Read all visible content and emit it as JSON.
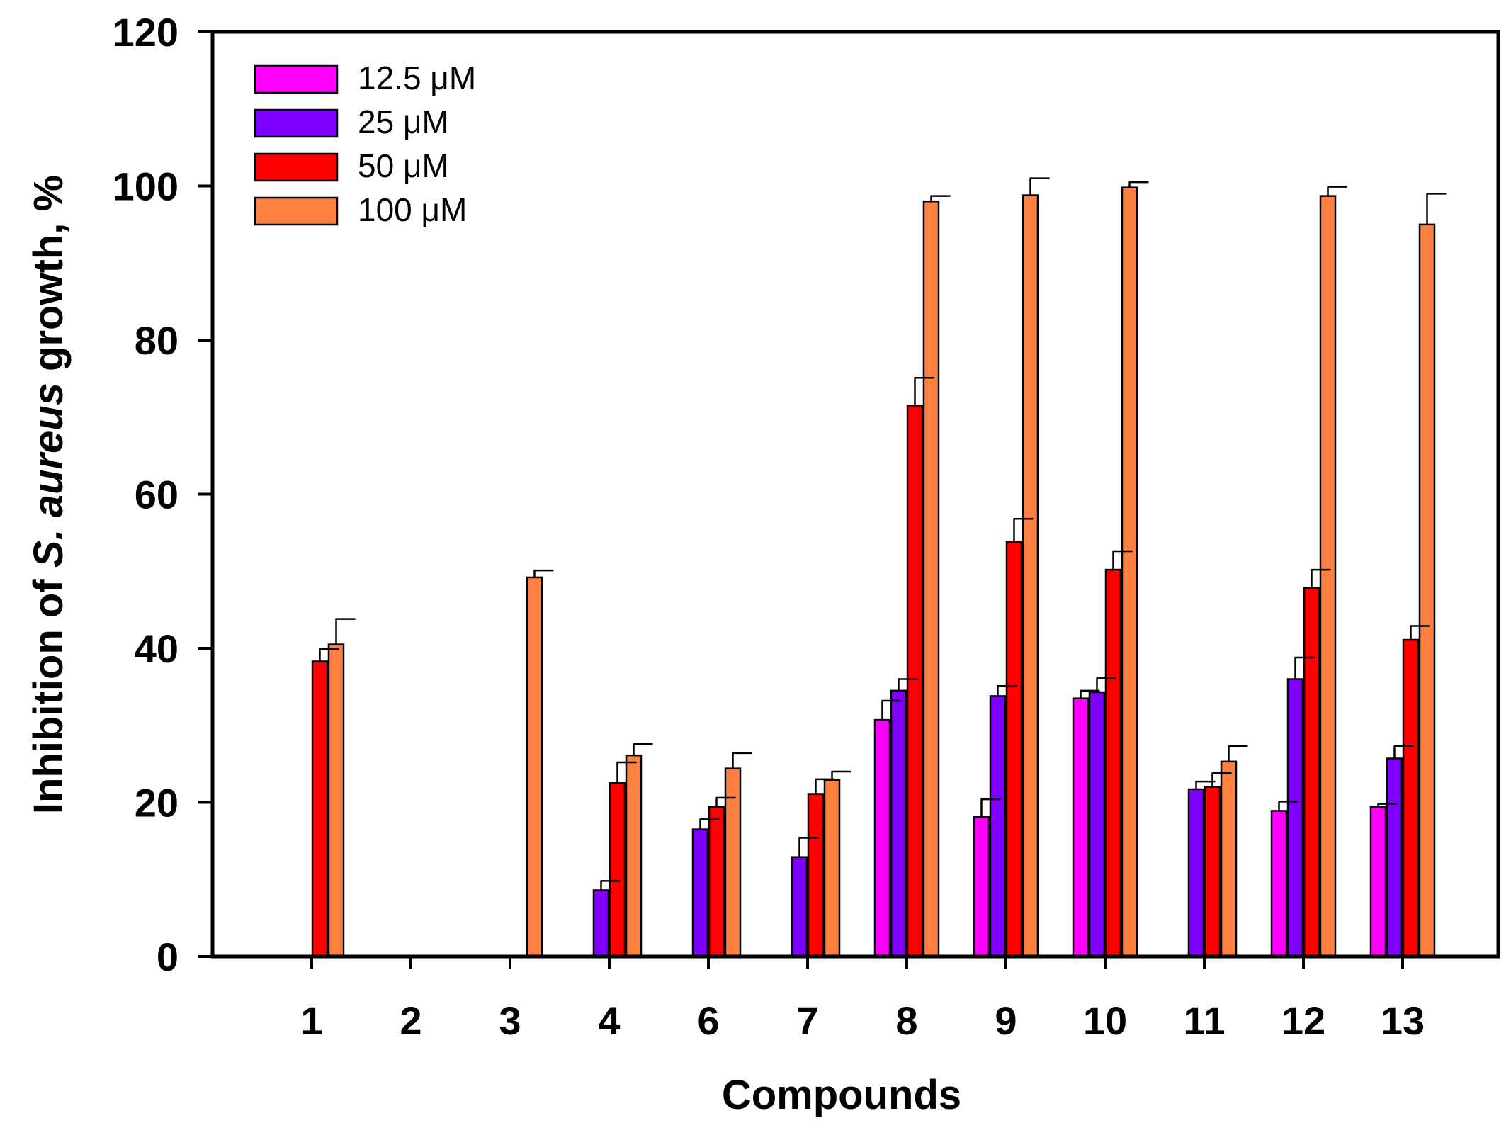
{
  "chart_data": {
    "type": "bar",
    "title": "",
    "xlabel": "Compounds",
    "ylabel": {
      "prefix": "Inhibition of ",
      "italic": "S. aureus",
      "suffix": " growth, %"
    },
    "ylim": [
      0,
      120
    ],
    "yticks": [
      0,
      20,
      40,
      60,
      80,
      100,
      120
    ],
    "categories": [
      "1",
      "2",
      "3",
      "4",
      "6",
      "7",
      "8",
      "9",
      "10",
      "11",
      "12",
      "13"
    ],
    "legend_position": "top-left",
    "series": [
      {
        "name": "12.5 μM",
        "color": "#ff00ff",
        "values": [
          null,
          null,
          null,
          null,
          null,
          null,
          30.7,
          18.1,
          33.5,
          null,
          18.9,
          19.4
        ],
        "errors": [
          null,
          null,
          null,
          null,
          null,
          null,
          2.5,
          2.3,
          1.0,
          null,
          1.2,
          0.4
        ]
      },
      {
        "name": "25 μM",
        "color": "#8000ff",
        "values": [
          null,
          null,
          null,
          8.6,
          16.5,
          12.9,
          34.5,
          33.8,
          34.3,
          21.7,
          36.0,
          25.7
        ],
        "errors": [
          null,
          null,
          null,
          1.2,
          1.3,
          2.5,
          1.5,
          1.3,
          1.8,
          1.0,
          2.8,
          1.6
        ]
      },
      {
        "name": "50 μM",
        "color": "#ff0000",
        "values": [
          38.3,
          null,
          null,
          22.5,
          19.4,
          21.1,
          71.5,
          53.8,
          50.2,
          22.0,
          47.8,
          41.1
        ],
        "errors": [
          1.6,
          null,
          null,
          2.7,
          1.2,
          1.9,
          3.6,
          3.0,
          2.4,
          1.8,
          2.4,
          1.8
        ]
      },
      {
        "name": "100 μM",
        "color": "#ff8040",
        "values": [
          40.5,
          null,
          49.2,
          26.1,
          24.4,
          22.9,
          98.0,
          98.8,
          99.8,
          25.3,
          98.7,
          95.0
        ],
        "errors": [
          3.3,
          null,
          0.9,
          1.5,
          2.0,
          1.1,
          0.7,
          2.2,
          0.7,
          2.0,
          1.2,
          4.0
        ]
      }
    ]
  }
}
